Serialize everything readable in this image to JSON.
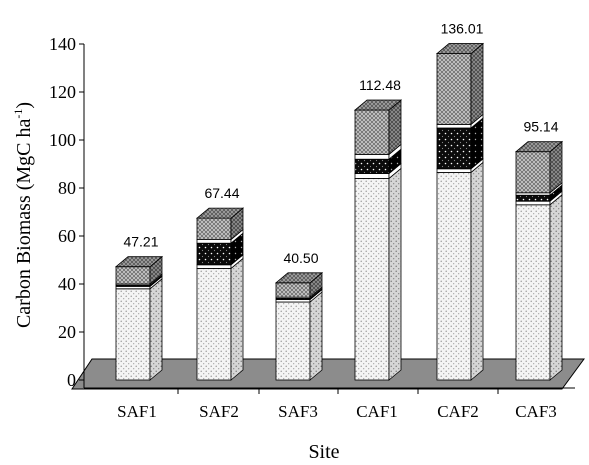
{
  "chart_data": {
    "type": "bar",
    "stacked": true,
    "three_d": true,
    "xlabel": "Site",
    "ylabel": "Carbon Biomass (MgC ha",
    "ylabel_sup": "-1",
    "ylabel_close": ")",
    "ylim": [
      0,
      140
    ],
    "yticks": [
      "0",
      "20",
      "40",
      "60",
      "80",
      "100",
      "120",
      "140"
    ],
    "grid": false,
    "legend": "none",
    "categories": [
      "SAF1",
      "SAF2",
      "SAF3",
      "CAF1",
      "CAF2",
      "CAF3"
    ],
    "totals": [
      47.21,
      67.44,
      40.5,
      112.48,
      136.01,
      95.14
    ],
    "total_labels": [
      "47.21",
      "67.44",
      "40.50",
      "112.48",
      "136.01",
      "95.14"
    ],
    "segments": [
      {
        "pattern": "light-dots",
        "values": [
          38,
          46.5,
          32.5,
          84,
          86.5,
          73
        ]
      },
      {
        "pattern": "white",
        "values": [
          1,
          1.5,
          1,
          2,
          1.5,
          1.5
        ]
      },
      {
        "pattern": "dark-dots",
        "values": [
          0.5,
          9,
          0.5,
          6,
          17,
          2.5
        ]
      },
      {
        "pattern": "white",
        "values": [
          0.5,
          1.5,
          0.5,
          2,
          1.5,
          1
        ]
      },
      {
        "pattern": "crosshatch",
        "values": [
          7.21,
          8.94,
          6,
          18.48,
          29.51,
          17.14
        ]
      }
    ],
    "colors": {
      "floor": "#8c8c8c",
      "light": "#f2f2f2",
      "dark": "#0d0d0d",
      "hatch": "#7a7a7a",
      "white": "#ffffff"
    }
  }
}
